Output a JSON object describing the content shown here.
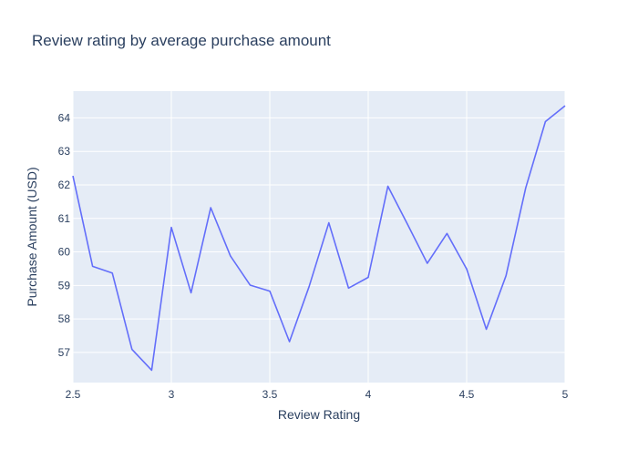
{
  "chart_data": {
    "type": "line",
    "title": "Review rating by average purchase amount",
    "xlabel": "Review Rating",
    "ylabel": "Purchase Amount (USD)",
    "xlim": [
      2.5,
      5
    ],
    "ylim": [
      56.1,
      64.8
    ],
    "x_ticks": [
      2.5,
      3,
      3.5,
      4,
      4.5,
      5
    ],
    "x_tick_labels": [
      "2.5",
      "3",
      "3.5",
      "4",
      "4.5",
      "5"
    ],
    "y_ticks": [
      57,
      58,
      59,
      60,
      61,
      62,
      63,
      64
    ],
    "y_tick_labels": [
      "57",
      "58",
      "59",
      "60",
      "61",
      "62",
      "63",
      "64"
    ],
    "grid": true,
    "legend": "none",
    "series": [
      {
        "x": [
          2.5,
          2.6,
          2.7,
          2.8,
          2.9,
          3.0,
          3.1,
          3.2,
          3.3,
          3.4,
          3.5,
          3.6,
          3.7,
          3.8,
          3.9,
          4.0,
          4.1,
          4.2,
          4.3,
          4.4,
          4.5,
          4.6,
          4.7,
          4.8,
          4.9,
          5.0
        ],
        "y": [
          62.27,
          59.57,
          59.37,
          57.09,
          56.47,
          60.73,
          58.78,
          61.32,
          59.88,
          59.01,
          58.83,
          57.32,
          58.97,
          60.87,
          58.92,
          59.24,
          61.96,
          60.82,
          59.66,
          60.55,
          59.49,
          57.69,
          59.29,
          61.91,
          63.89,
          64.36
        ],
        "color": "#636efa"
      }
    ]
  },
  "colors": {
    "plot_bg": "#e5ecf6",
    "grid": "#ffffff",
    "text": "#2a3f5f",
    "line": "#636efa"
  }
}
